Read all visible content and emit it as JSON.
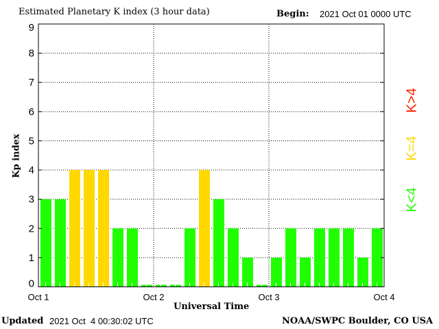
{
  "header": {
    "title": "Estimated Planetary K index (3 hour data)",
    "begin_label": "Begin:",
    "begin_value": "2021 Oct 01 0000 UTC"
  },
  "footer": {
    "updated_label": "Updated",
    "updated_value": "2021 Oct  4 00:30:02 UTC",
    "source": "NOAA/SWPC Boulder, CO USA"
  },
  "legend": {
    "high": {
      "label": "K>4",
      "color": "#ff2000"
    },
    "mid": {
      "label": "K=4",
      "color": "#ffd800"
    },
    "low": {
      "label": "K<4",
      "color": "#20ff00"
    }
  },
  "chart_data": {
    "type": "bar",
    "title": "Estimated Planetary K index (3 hour data)",
    "xlabel": "Universal Time",
    "ylabel": "Kp index",
    "ylim": [
      0,
      9
    ],
    "yticks": [
      "0",
      "1",
      "2",
      "3",
      "4",
      "5",
      "6",
      "7",
      "8",
      "9"
    ],
    "xticks": [
      "Oct 1",
      "Oct 2",
      "Oct 3",
      "Oct 4"
    ],
    "grid": "dotted",
    "interval_hours": 3,
    "values": [
      3,
      3,
      4,
      4,
      4,
      2,
      2,
      0,
      0,
      0,
      2,
      4,
      3,
      2,
      1,
      0,
      1,
      2,
      1,
      2,
      2,
      2,
      1,
      2
    ]
  }
}
